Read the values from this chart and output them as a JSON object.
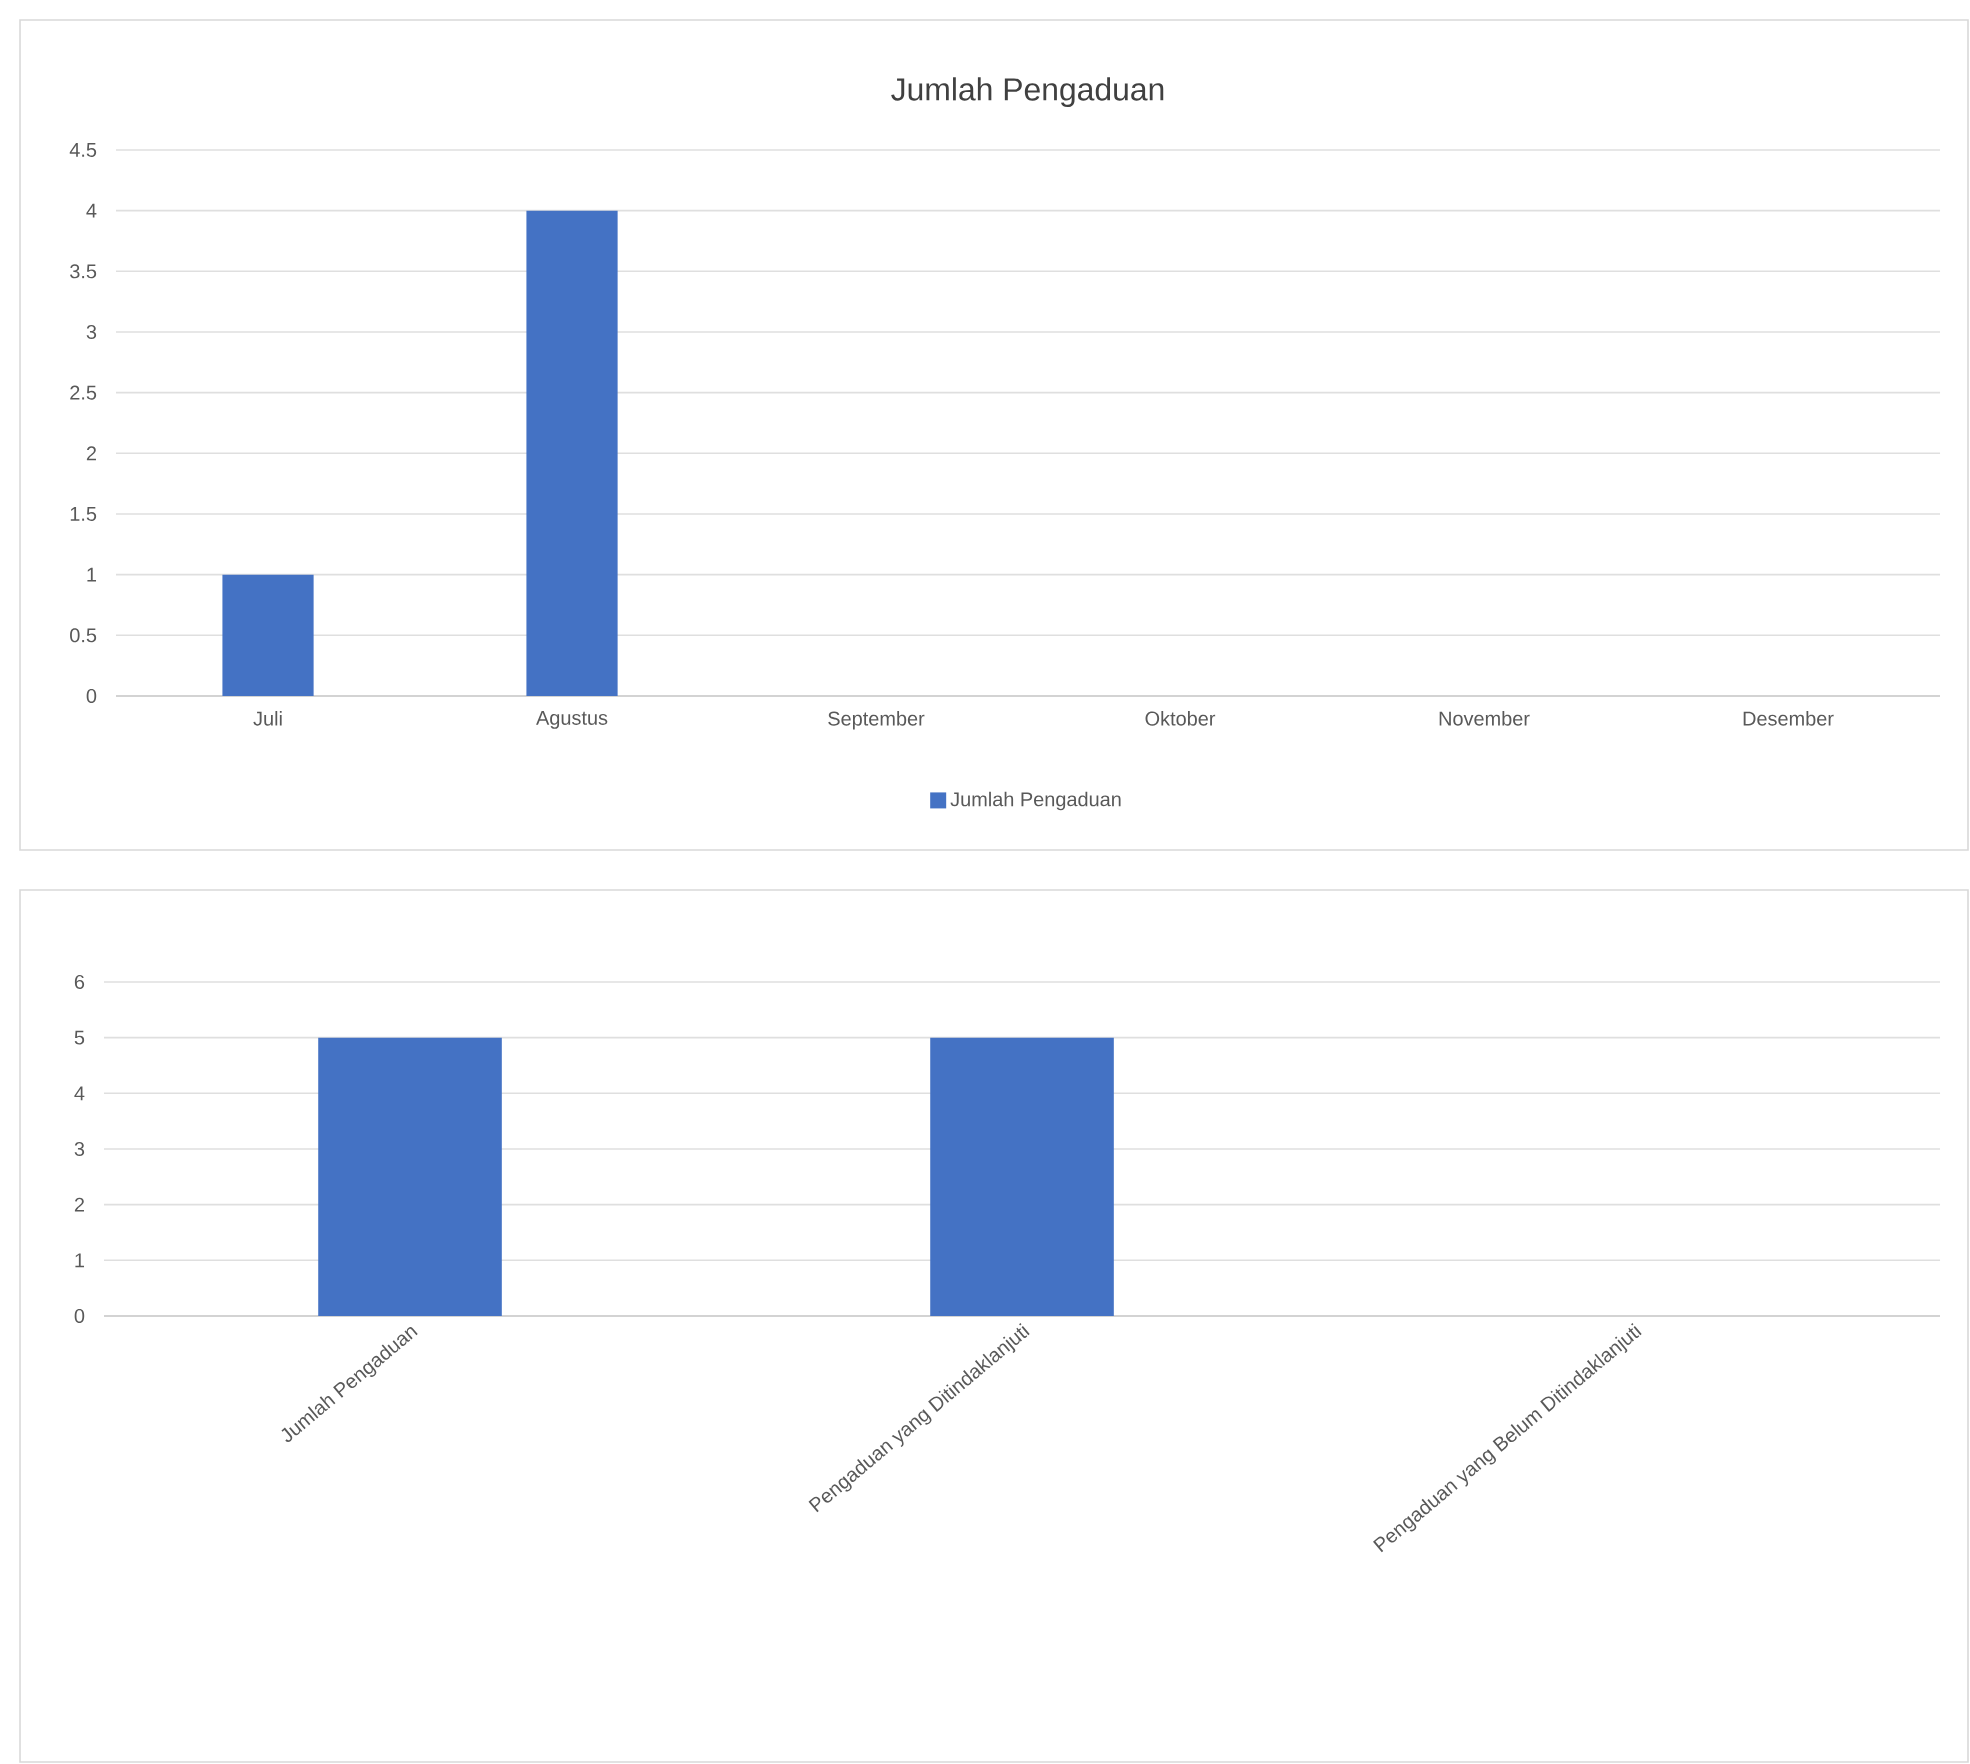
{
  "chart_data": [
    {
      "type": "bar",
      "title": "Jumlah Pengaduan",
      "categories": [
        "Juli",
        "Agustus",
        "September",
        "Oktober",
        "November",
        "Desember"
      ],
      "series": [
        {
          "name": "Jumlah Pengaduan",
          "color": "#4472c4",
          "values": [
            1,
            4,
            0,
            0,
            0,
            0
          ]
        }
      ],
      "ylim": [
        0,
        4.5
      ],
      "yticks": [
        0,
        0.5,
        1,
        1.5,
        2,
        2.5,
        3,
        3.5,
        4,
        4.5
      ],
      "grid": "y",
      "legend": "bottom"
    },
    {
      "type": "bar",
      "categories": [
        "Jumlah Pengaduan",
        "Pengaduan yang Ditindaklanjuti",
        "Pengaduan yang Belum Ditindaklanjuti"
      ],
      "values": [
        5,
        5,
        0
      ],
      "color": "#4472c4",
      "ylim": [
        0,
        6
      ],
      "yticks": [
        0,
        1,
        2,
        3,
        4,
        5,
        6
      ],
      "grid": "y"
    }
  ]
}
